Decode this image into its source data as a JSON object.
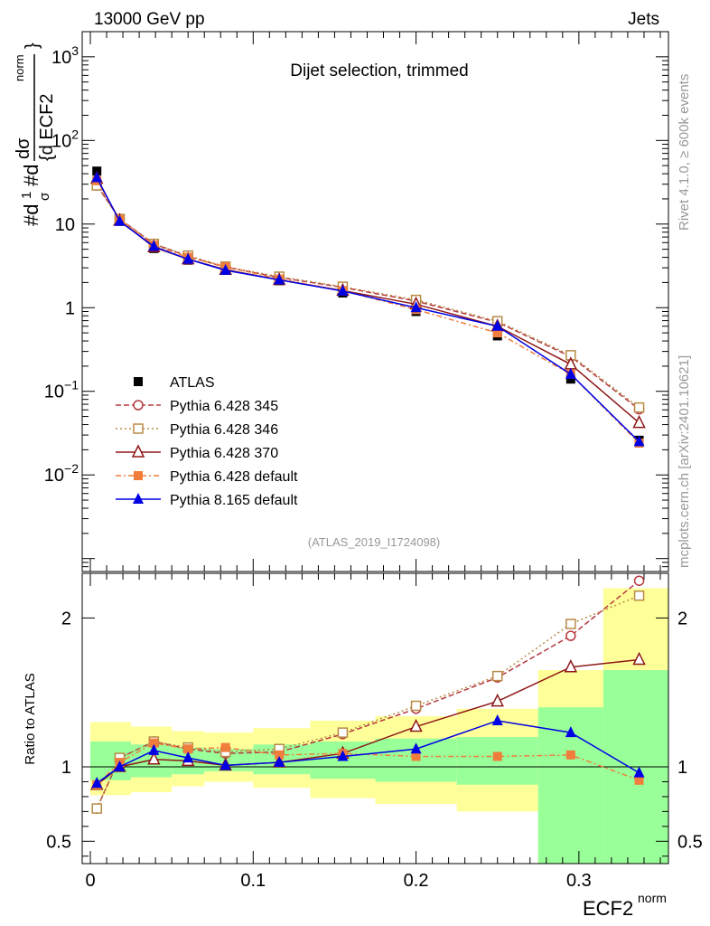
{
  "header": {
    "left": "13000 GeV pp",
    "right": "Jets"
  },
  "main_plot": {
    "title": "Dijet selection, trimmed",
    "ylabel_parts": [
      "#d",
      "1",
      "σ",
      "#d",
      "dσ",
      "{d ECF2",
      "norm",
      "}"
    ],
    "y_ticks": [
      {
        "value": 1000,
        "base": "10",
        "exp": "3"
      },
      {
        "value": 100,
        "base": "10",
        "exp": "2"
      },
      {
        "value": 10,
        "base": "10",
        "exp": ""
      },
      {
        "value": 1,
        "base": "1",
        "exp": ""
      },
      {
        "value": 0.1,
        "base": "10",
        "exp": "−1"
      },
      {
        "value": 0.01,
        "base": "10",
        "exp": "−2"
      }
    ],
    "analysis_id": "(ATLAS_2019_I1724098)"
  },
  "side_labels": {
    "rivet": "Rivet 4.1.0, ≥ 600k events",
    "mcplots": "mcplots.cern.ch [arXiv:2401.10621]"
  },
  "ratio_plot": {
    "ylabel": "Ratio to ATLAS",
    "y_ticks": [
      {
        "value": 0.5,
        "label": "0.5"
      },
      {
        "value": 1,
        "label": "1"
      },
      {
        "value": 2,
        "label": "2"
      }
    ]
  },
  "x_axis": {
    "label": "ECF2",
    "label_sup": "norm",
    "ticks": [
      {
        "value": 0,
        "label": "0"
      },
      {
        "value": 0.1,
        "label": "0.1"
      },
      {
        "value": 0.2,
        "label": "0.2"
      },
      {
        "value": 0.3,
        "label": "0.3"
      }
    ]
  },
  "chart_data": {
    "type": "line",
    "xlim": [
      -0.005,
      0.355
    ],
    "ylim_main": [
      0.0007,
      2000
    ],
    "ylim_ratio": [
      0.35,
      2.3
    ],
    "x": [
      0.004,
      0.018,
      0.039,
      0.06,
      0.083,
      0.116,
      0.155,
      0.2,
      0.25,
      0.295,
      0.337
    ],
    "bin_edges": [
      0.0,
      0.01,
      0.025,
      0.05,
      0.07,
      0.1,
      0.135,
      0.175,
      0.225,
      0.275,
      0.315,
      0.355
    ],
    "band_inner": [
      [
        0.91,
        1.17
      ],
      [
        0.91,
        1.17
      ],
      [
        0.93,
        1.15
      ],
      [
        0.95,
        1.13
      ],
      [
        0.97,
        1.12
      ],
      [
        0.95,
        1.15
      ],
      [
        0.92,
        1.17
      ],
      [
        0.9,
        1.19
      ],
      [
        0.88,
        1.2
      ],
      [
        0.35,
        1.4
      ],
      [
        0.35,
        1.65
      ]
    ],
    "band_outer": [
      [
        0.81,
        1.3
      ],
      [
        0.81,
        1.3
      ],
      [
        0.83,
        1.27
      ],
      [
        0.87,
        1.24
      ],
      [
        0.9,
        1.23
      ],
      [
        0.86,
        1.26
      ],
      [
        0.79,
        1.31
      ],
      [
        0.75,
        1.34
      ],
      [
        0.7,
        1.39
      ],
      [
        0.35,
        1.65
      ],
      [
        0.35,
        2.2
      ]
    ],
    "series": [
      {
        "name": "ATLAS",
        "color": "#000000",
        "marker": "square-filled",
        "dash": "none",
        "values": [
          43,
          11,
          5.1,
          3.7,
          2.8,
          2.1,
          1.5,
          0.9,
          0.46,
          0.14,
          0.026
        ],
        "ratio": null
      },
      {
        "name": "Pythia 6.428 345",
        "color": "#b6383f",
        "marker": "circle-open",
        "dash": "6,3",
        "values": [
          29,
          11.5,
          5.8,
          4.1,
          3.05,
          2.3,
          1.75,
          1.2,
          0.67,
          0.26,
          0.061
        ],
        "ratio": [
          0.72,
          1.06,
          1.17,
          1.12,
          1.09,
          1.1,
          1.22,
          1.39,
          1.6,
          1.88,
          2.25
        ]
      },
      {
        "name": "Pythia 6.428 346",
        "color": "#b88a46",
        "marker": "square-open",
        "dash": "2,3",
        "values": [
          29,
          11.5,
          5.8,
          4.2,
          3.1,
          2.35,
          1.78,
          1.24,
          0.69,
          0.27,
          0.064
        ],
        "ratio": [
          0.72,
          1.06,
          1.17,
          1.13,
          1.1,
          1.12,
          1.23,
          1.41,
          1.61,
          1.96,
          2.15
        ]
      },
      {
        "name": "Pythia 6.428 370",
        "color": "#8e1717",
        "marker": "triangle-open",
        "dash": "none",
        "values": [
          35,
          11,
          5.3,
          3.8,
          2.85,
          2.15,
          1.6,
          1.1,
          0.6,
          0.21,
          0.042
        ],
        "ratio": [
          0.88,
          1.0,
          1.05,
          1.04,
          1.01,
          1.03,
          1.09,
          1.27,
          1.44,
          1.67,
          1.72
        ]
      },
      {
        "name": "Pythia 6.428 default",
        "color": "#f07d3c",
        "marker": "square-filled",
        "dash": "6,3,2,3",
        "values": [
          33,
          11.3,
          5.6,
          4.0,
          3.1,
          2.2,
          1.6,
          0.95,
          0.5,
          0.16,
          0.024
        ],
        "ratio": [
          0.88,
          1.03,
          1.16,
          1.12,
          1.13,
          1.08,
          1.09,
          1.07,
          1.07,
          1.08,
          0.91
        ]
      },
      {
        "name": "Pythia 8.165 default",
        "color": "#0000e5",
        "marker": "triangle-filled",
        "dash": "none",
        "values": [
          36,
          10.8,
          5.4,
          3.8,
          2.8,
          2.15,
          1.58,
          1.0,
          0.6,
          0.16,
          0.025
        ],
        "ratio": [
          0.89,
          1.0,
          1.11,
          1.06,
          1.01,
          1.03,
          1.07,
          1.12,
          1.31,
          1.23,
          0.96
        ]
      }
    ]
  }
}
